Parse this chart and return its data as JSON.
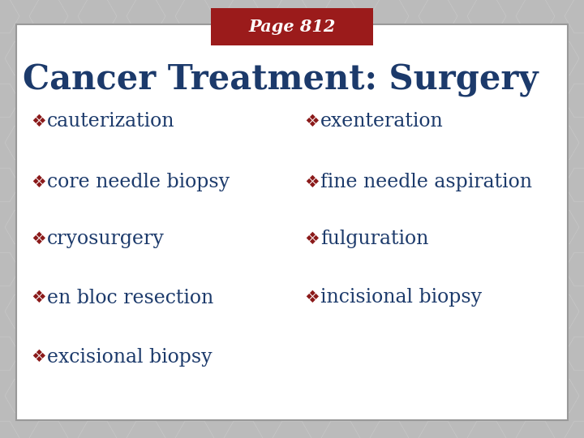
{
  "page_label": "Page 812",
  "page_label_bg": "#9B1B1B",
  "page_label_color": "#FFFFFF",
  "title": "Cancer Treatment: Surgery",
  "title_color": "#1C3A6B",
  "background_outer": "#BBBBBB",
  "background_inner": "#FFFFFF",
  "bullet_color": "#8B1A1A",
  "text_color": "#1C3A6B",
  "bullet_char": "❖",
  "items_left": [
    "cauterization",
    "core needle biopsy",
    "cryosurgery",
    "en bloc resection",
    "excisional biopsy"
  ],
  "items_right": [
    "exenteration",
    "fine needle aspiration",
    "fulguration",
    "incisional biopsy"
  ],
  "figsize": [
    7.2,
    5.4
  ],
  "dpi": 100
}
